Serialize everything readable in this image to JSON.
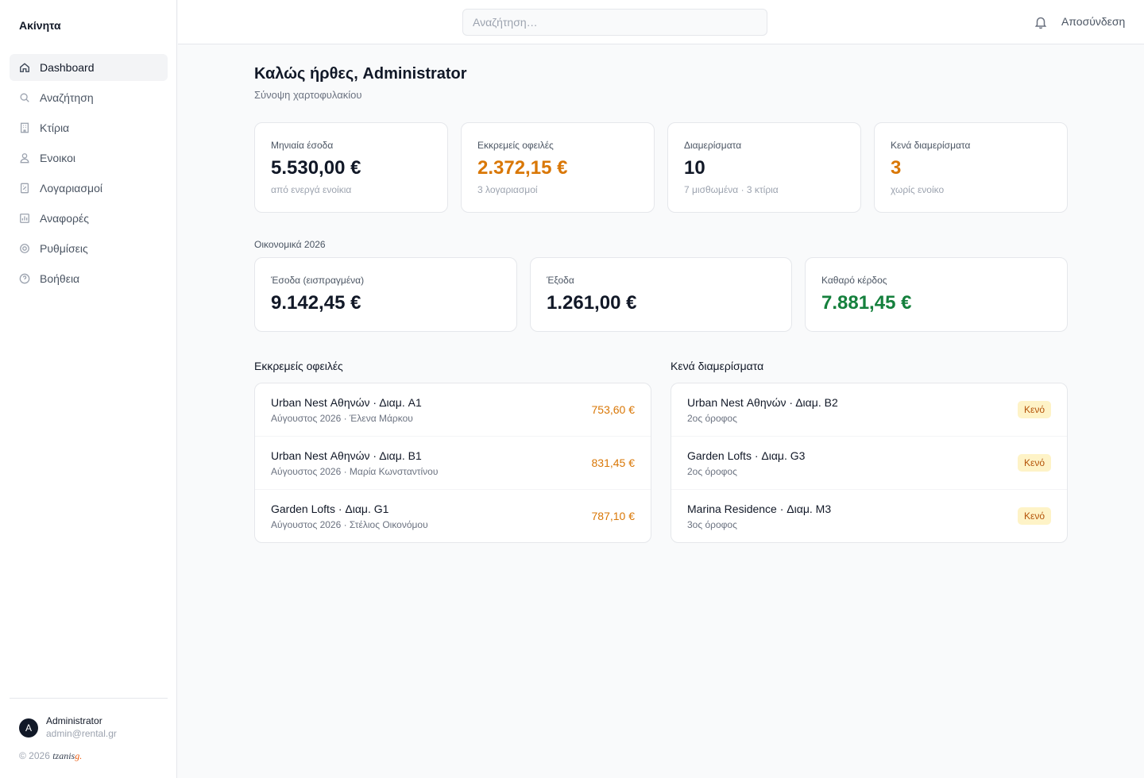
{
  "sidebar": {
    "brand": "Ακίνητα",
    "items": [
      {
        "label": "Dashboard",
        "icon": "home-icon",
        "active": true
      },
      {
        "label": "Αναζήτηση",
        "icon": "search-icon"
      },
      {
        "label": "Κτίρια",
        "icon": "building-icon"
      },
      {
        "label": "Ενοικοι",
        "icon": "user-icon"
      },
      {
        "label": "Λογαριασμοί",
        "icon": "receipt-icon"
      },
      {
        "label": "Αναφορές",
        "icon": "chart-icon"
      },
      {
        "label": "Ρυθμίσεις",
        "icon": "gear-icon"
      },
      {
        "label": "Βοήθεια",
        "icon": "help-icon"
      }
    ],
    "user": {
      "initial": "A",
      "name": "Administrator",
      "email": "admin@rental.gr"
    },
    "copyright": "© 2026",
    "logo_text": "tzanis",
    "logo_dot": "g."
  },
  "topbar": {
    "search_placeholder": "Αναζήτηση…",
    "logout_label": "Αποσύνδεση"
  },
  "header": {
    "title": "Καλώς ήρθες, Administrator",
    "subtitle": "Σύνοψη χαρτοφυλακίου"
  },
  "stats": [
    {
      "label": "Μηνιαία έσοδα",
      "value": "5.530,00 €",
      "sub": "από ενεργά ενοίκια"
    },
    {
      "label": "Εκκρεμείς οφειλές",
      "value": "2.372,15 €",
      "sub": "3 λογαριασμοί"
    },
    {
      "label": "Διαμερίσματα",
      "value": "10",
      "sub": "7 μισθωμένα · 3 κτίρια"
    },
    {
      "label": "Κενά διαμερίσματα",
      "value": "3",
      "sub": "χωρίς ενοίκο"
    }
  ],
  "finance": {
    "label": "Οικονομικά 2026",
    "cards": [
      {
        "label": "Έσοδα (εισπραγμένα)",
        "value": "9.142,45 €"
      },
      {
        "label": "Έξοδα",
        "value": "1.261,00 €"
      },
      {
        "label": "Καθαρό κέρδος",
        "value": "7.881,45 €"
      }
    ]
  },
  "pending": {
    "title": "Εκκρεμείς οφειλές",
    "rows": [
      {
        "name": "Urban Nest Αθηνών · Διαμ. A1",
        "sub": "Αύγουστος 2026 · Έλενα Μάρκου",
        "amount": "753,60 €"
      },
      {
        "name": "Urban Nest Αθηνών · Διαμ. B1",
        "sub": "Αύγουστος 2026 · Μαρία Κωνσταντίνου",
        "amount": "831,45 €"
      },
      {
        "name": "Garden Lofts · Διαμ. G1",
        "sub": "Αύγουστος 2026 · Στέλιος Οικονόμου",
        "amount": "787,10 €"
      }
    ]
  },
  "vacant": {
    "title": "Κενά διαμερίσματα",
    "rows": [
      {
        "name": "Urban Nest Αθηνών · Διαμ. B2",
        "sub": "2ος όροφος",
        "badge": "Κενό"
      },
      {
        "name": "Garden Lofts · Διαμ. G3",
        "sub": "2ος όροφος",
        "badge": "Κενό"
      },
      {
        "name": "Marina Residence · Διαμ. M3",
        "sub": "3ος όροφος",
        "badge": "Κενό"
      }
    ]
  },
  "colors": {
    "accent_orange": "#d97706",
    "profit_green": "#15803d",
    "badge_bg": "#fef3c7"
  }
}
